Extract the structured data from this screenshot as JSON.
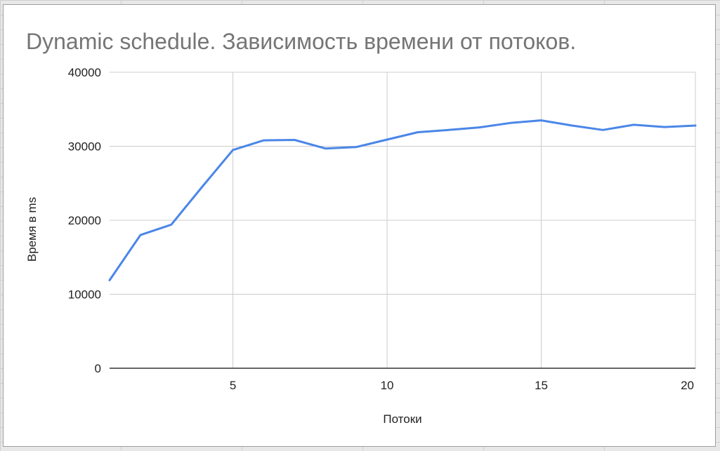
{
  "chart_data": {
    "type": "line",
    "title": "Dynamic schedule. Зависимость времени от потоков.",
    "xlabel": "Потоки",
    "ylabel": "Время в ms",
    "xlim": [
      1,
      20
    ],
    "ylim": [
      0,
      40000
    ],
    "x_ticks": [
      5,
      10,
      15,
      20
    ],
    "y_ticks": [
      0,
      10000,
      20000,
      30000,
      40000
    ],
    "grid": true,
    "legend": "none",
    "series": [
      {
        "color": "#4a86e8",
        "x": [
          1,
          2,
          3,
          4,
          5,
          6,
          7,
          8,
          9,
          10,
          11,
          12,
          13,
          14,
          15,
          16,
          17,
          18,
          19,
          20
        ],
        "values": [
          11900,
          18000,
          19400,
          24500,
          29500,
          30800,
          30850,
          29700,
          29900,
          30900,
          31900,
          32200,
          32550,
          33150,
          33500,
          32800,
          32200,
          32900,
          32600,
          32800
        ]
      }
    ]
  }
}
